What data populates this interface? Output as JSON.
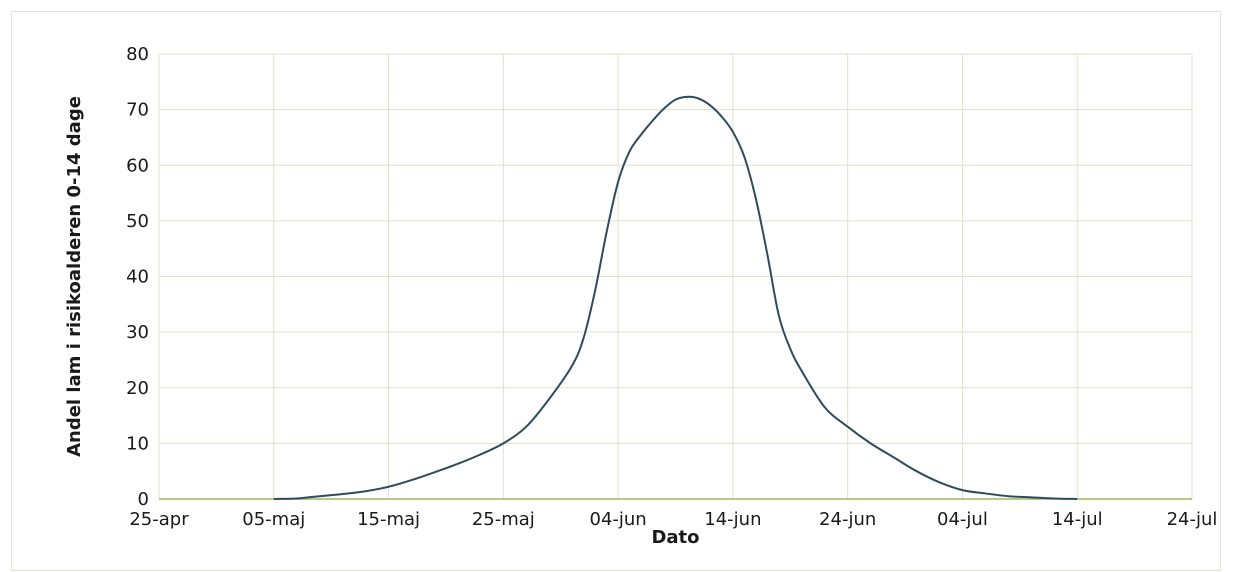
{
  "chart_data": {
    "type": "line",
    "title": "",
    "xlabel": "Dato",
    "ylabel": "Andel lam i risikoalderen 0-14 dage",
    "ylim": [
      0,
      80
    ],
    "y_ticks": [
      0,
      10,
      20,
      30,
      40,
      50,
      60,
      70,
      80
    ],
    "x_ticks": [
      "25-apr",
      "05-maj",
      "15-maj",
      "25-maj",
      "04-jun",
      "14-jun",
      "24-jun",
      "04-jul",
      "14-jul",
      "24-jul"
    ],
    "xlim": [
      "25-apr",
      "24-jul"
    ],
    "grid": true,
    "colors": {
      "line": "#2f4b5e",
      "grid": "#dfe3c8",
      "axis": "#9bbb59"
    },
    "series": [
      {
        "x": [
          "05-maj",
          "07-maj",
          "08-maj",
          "09-maj",
          "11-maj",
          "13-maj",
          "15-maj",
          "17-maj",
          "19-maj",
          "21-maj",
          "23-maj",
          "25-maj",
          "27-maj",
          "29-maj",
          "31-maj",
          "01-jun",
          "02-jun",
          "03-jun",
          "04-jun",
          "05-jun",
          "06-jun",
          "07-jun",
          "08-jun",
          "09-jun",
          "10-jun",
          "11-jun",
          "12-jun",
          "13-jun",
          "14-jun",
          "15-jun",
          "16-jun",
          "17-jun",
          "18-jun",
          "19-jun",
          "20-jun",
          "22-jun",
          "24-jun",
          "26-jun",
          "28-jun",
          "30-jun",
          "02-jul",
          "04-jul",
          "06-jul",
          "08-jul",
          "10-jul",
          "12-jul",
          "14-jul"
        ],
        "y": [
          0,
          0.1,
          0.3,
          0.5,
          0.9,
          1.4,
          2.2,
          3.4,
          4.8,
          6.3,
          8.0,
          10.0,
          13.0,
          18.0,
          24.0,
          29.0,
          37.5,
          48.0,
          57.0,
          62.5,
          65.5,
          68.0,
          70.2,
          71.8,
          72.3,
          72.0,
          70.8,
          68.8,
          66.0,
          61.5,
          54.0,
          44.0,
          33.0,
          27.0,
          23.0,
          16.5,
          13.0,
          10.0,
          7.5,
          5.0,
          3.0,
          1.6,
          1.0,
          0.5,
          0.3,
          0.1,
          0
        ]
      }
    ]
  }
}
